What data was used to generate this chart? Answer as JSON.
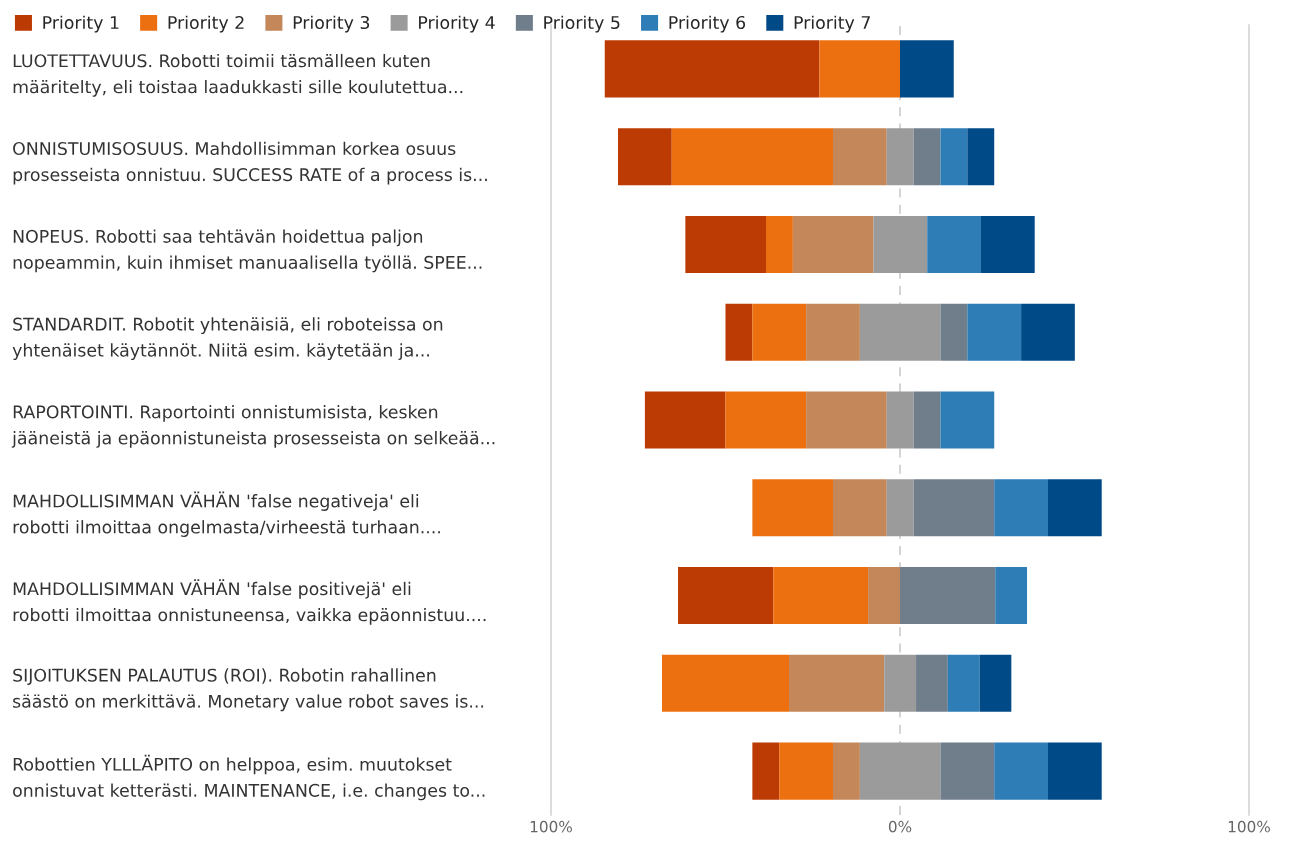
{
  "chart_data": {
    "type": "bar",
    "orientation": "horizontal",
    "categories": [
      "LUOTETTAVUUS. Robotti toimii täsmälleen kuten\nmääritelty, eli toistaa laadukkasti sille koulutettua...",
      "ONNISTUMISOSUUS. Mahdollisimman korkea osuus\nprosesseista onnistuu. SUCCESS RATE of a process is...",
      "NOPEUS. Robotti saa tehtävän hoidettua paljon\nnopeammin, kuin ihmiset manuaalisella työllä. SPEE...",
      "STANDARDIT. Robotit yhtenäisiä, eli roboteissa on\nyhtenäiset käytännöt. Niitä esim. käytetään ja...",
      "RAPORTOINTI. Raportointi onnistumisista, kesken\njääneistä ja epäonnistuneista prosesseista on selkeää...",
      "MAHDOLLISIMMAN VÄHÄN 'false negativeja' eli\nrobotti ilmoittaa ongelmasta/virheestä turhaan....",
      "MAHDOLLISIMMAN VÄHÄN 'false positivejä' eli\nrobotti ilmoittaa onnistuneensa, vaikka epäonnistuu....",
      "SIJOITUKSEN PALAUTUS (ROI). Robotin rahallinen\nsäästö on merkittävä. Monetary value robot saves is...",
      "Robottien YLLLÄPITO on helppoa, esim. muutokset\nonnistuvat ketterästi. MAINTENANCE, i.e. changes to..."
    ],
    "series": [
      {
        "name": "Priority 1",
        "color": "#bc3a03",
        "base": [
          -84.6,
          -80.8,
          -61.5,
          -50.0,
          -73.1,
          null,
          -63.6,
          null,
          -42.3
        ],
        "values": [
          61.5,
          15.4,
          23.1,
          7.7,
          23.1,
          null,
          27.3,
          null,
          7.7
        ]
      },
      {
        "name": "Priority 2",
        "color": "#ec7010",
        "base": [
          -23.1,
          -65.4,
          -38.4,
          -42.3,
          -50.0,
          -42.3,
          -36.3,
          -68.2,
          -34.6
        ],
        "values": [
          23.1,
          46.2,
          7.7,
          15.4,
          23.1,
          23.1,
          27.3,
          36.4,
          15.4
        ]
      },
      {
        "name": "Priority 3",
        "color": "#c4875a",
        "base": [
          null,
          -19.2,
          -30.7,
          -26.9,
          -26.9,
          -19.2,
          -9.1,
          -31.8,
          -19.2
        ],
        "values": [
          null,
          15.4,
          23.1,
          15.4,
          23.1,
          15.4,
          9.1,
          27.3,
          7.7
        ]
      },
      {
        "name": "Priority 4",
        "color": "#9b9b9b",
        "base": [
          null,
          -3.8,
          -7.6,
          -11.5,
          -3.8,
          -3.8,
          null,
          -4.5,
          -11.5
        ],
        "values": [
          null,
          7.7,
          15.4,
          23.1,
          7.7,
          7.7,
          null,
          9.1,
          23.1
        ]
      },
      {
        "name": "Priority 5",
        "color": "#707d8b",
        "base": [
          null,
          3.9,
          null,
          11.6,
          3.9,
          3.9,
          0,
          4.6,
          11.6
        ],
        "values": [
          null,
          7.7,
          null,
          7.7,
          7.7,
          23.1,
          27.3,
          9.1,
          15.4
        ]
      },
      {
        "name": "Priority 6",
        "color": "#2e7db7",
        "base": [
          null,
          11.6,
          7.8,
          19.3,
          11.6,
          27.0,
          27.3,
          13.7,
          27.0
        ],
        "values": [
          null,
          7.7,
          15.4,
          15.4,
          15.4,
          15.4,
          9.1,
          9.1,
          15.4
        ]
      },
      {
        "name": "Priority 7",
        "color": "#004a87",
        "base": [
          0,
          19.3,
          23.2,
          34.7,
          null,
          42.4,
          null,
          22.8,
          42.4
        ],
        "values": [
          15.4,
          7.7,
          15.4,
          15.4,
          null,
          15.4,
          null,
          9.1,
          15.4
        ]
      }
    ],
    "xlim": [
      -100,
      100
    ],
    "xticks": [
      {
        "value": -100,
        "label": "100%"
      },
      {
        "value": 0,
        "label": "0%"
      },
      {
        "value": 100,
        "label": "100%"
      }
    ],
    "ref_lines": [
      {
        "axis": "x",
        "value": 0,
        "color": "#d0d0d0",
        "line_style": "dashed"
      },
      {
        "axis": "x",
        "value": -100,
        "color": "#d9d9d9",
        "line_style": "solid"
      },
      {
        "axis": "x",
        "value": 100,
        "color": "#d9d9d9",
        "line_style": "solid"
      }
    ],
    "legend": "top left"
  }
}
